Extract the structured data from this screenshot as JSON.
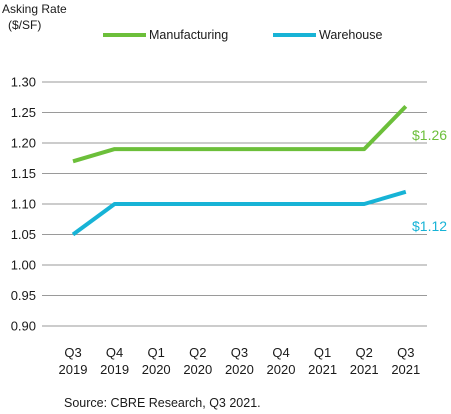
{
  "chart_data": {
    "type": "line",
    "ylabel_line1": "Asking Rate",
    "ylabel_line2": "($/SF)",
    "categories_top": [
      "Q3",
      "Q4",
      "Q1",
      "Q2",
      "Q3",
      "Q4",
      "Q1",
      "Q2",
      "Q3"
    ],
    "categories_bottom": [
      "2019",
      "2019",
      "2020",
      "2020",
      "2020",
      "2020",
      "2021",
      "2021",
      "2021"
    ],
    "yticks": [
      "0.90",
      "0.95",
      "1.00",
      "1.05",
      "1.10",
      "1.15",
      "1.20",
      "1.25",
      "1.30"
    ],
    "ylim": [
      0.9,
      1.3
    ],
    "grid": true,
    "legend_position": "top",
    "series": [
      {
        "name": "Manufacturing",
        "color": "#6cbf3a",
        "values": [
          1.17,
          1.19,
          1.19,
          1.19,
          1.19,
          1.19,
          1.19,
          1.19,
          1.26
        ],
        "end_label": "$1.26"
      },
      {
        "name": "Warehouse",
        "color": "#17b3d6",
        "values": [
          1.05,
          1.1,
          1.1,
          1.1,
          1.1,
          1.1,
          1.1,
          1.1,
          1.12
        ],
        "end_label": "$1.12"
      }
    ],
    "source": "Source: CBRE Research, Q3 2021."
  }
}
